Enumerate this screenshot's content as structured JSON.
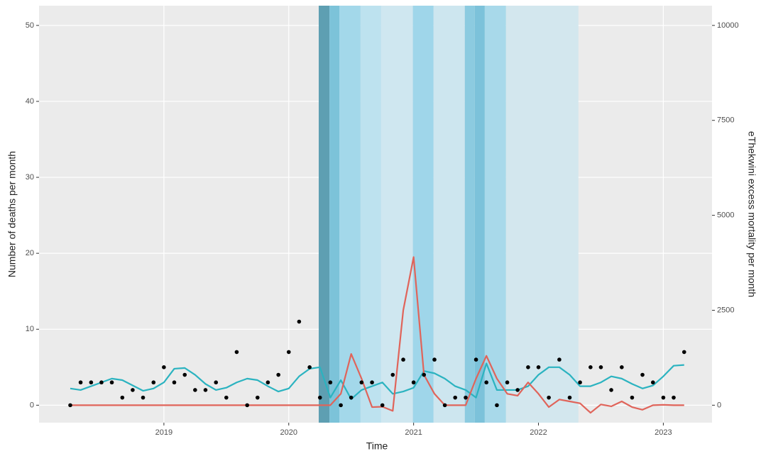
{
  "chart_data": {
    "type": "line",
    "xlabel": "Time",
    "ylabel": "Number of deaths per month",
    "y2label": "eThekwini excess mortality per month",
    "xlim": [
      2018.0,
      2023.39
    ],
    "xticks": [
      2019,
      2020,
      2021,
      2022,
      2023
    ],
    "ylim": [
      -2.3,
      52.6
    ],
    "yticks": [
      0,
      10,
      20,
      30,
      40,
      50
    ],
    "y2lim": [
      -460,
      10520
    ],
    "y2ticks": [
      0,
      2500,
      5000,
      7500,
      10000
    ],
    "grid": true,
    "bands": [
      {
        "x0": 2020.24,
        "x1": 2020.326,
        "color": "#5e9fb2"
      },
      {
        "x0": 2020.326,
        "x1": 2020.405,
        "color": "#7cc3d9"
      },
      {
        "x0": 2020.405,
        "x1": 2020.575,
        "color": "#a3d8ea"
      },
      {
        "x0": 2020.575,
        "x1": 2020.74,
        "color": "#bde2ef"
      },
      {
        "x0": 2020.74,
        "x1": 2020.994,
        "color": "#cfe7f0"
      },
      {
        "x0": 2020.994,
        "x1": 2021.16,
        "color": "#9fd6ea"
      },
      {
        "x0": 2021.16,
        "x1": 2021.41,
        "color": "#cde6ef"
      },
      {
        "x0": 2021.41,
        "x1": 2021.49,
        "color": "#8ccbe0"
      },
      {
        "x0": 2021.49,
        "x1": 2021.57,
        "color": "#7cc2da"
      },
      {
        "x0": 2021.57,
        "x1": 2021.74,
        "color": "#a8d9ea"
      },
      {
        "x0": 2021.74,
        "x1": 2022.32,
        "color": "#d3e7ee"
      }
    ],
    "x": [
      2018.25,
      2018.333,
      2018.417,
      2018.5,
      2018.583,
      2018.667,
      2018.75,
      2018.833,
      2018.917,
      2019.0,
      2019.083,
      2019.167,
      2019.25,
      2019.333,
      2019.417,
      2019.5,
      2019.583,
      2019.667,
      2019.75,
      2019.833,
      2019.917,
      2020.0,
      2020.083,
      2020.167,
      2020.25,
      2020.333,
      2020.417,
      2020.5,
      2020.583,
      2020.667,
      2020.75,
      2020.833,
      2020.917,
      2021.0,
      2021.083,
      2021.167,
      2021.25,
      2021.333,
      2021.417,
      2021.5,
      2021.583,
      2021.667,
      2021.75,
      2021.833,
      2021.917,
      2022.0,
      2022.083,
      2022.167,
      2022.25,
      2022.333,
      2022.417,
      2022.5,
      2022.583,
      2022.667,
      2022.75,
      2022.833,
      2022.917,
      2023.0,
      2023.083,
      2023.167
    ],
    "series": [
      {
        "type": "line",
        "color": "#2bb3c0",
        "values": [
          2.2,
          2.0,
          2.5,
          3.0,
          3.5,
          3.3,
          2.6,
          1.9,
          2.2,
          3.0,
          4.8,
          4.9,
          4.0,
          2.8,
          2.0,
          2.3,
          3.0,
          3.5,
          3.3,
          2.5,
          1.8,
          2.2,
          3.8,
          4.8,
          5.0,
          1.0,
          3.3,
          0.8,
          2.0,
          2.5,
          3.0,
          1.5,
          1.8,
          2.3,
          4.5,
          4.2,
          3.5,
          2.5,
          2.0,
          1.0,
          5.5,
          2.0,
          2.0,
          2.0,
          2.5,
          4.0,
          5.0,
          5.0,
          4.0,
          2.5,
          2.5,
          3.0,
          3.8,
          3.5,
          2.8,
          2.2,
          2.6,
          3.8,
          5.2,
          5.3
        ]
      },
      {
        "type": "line",
        "axis": "y2",
        "color": "#e0645a",
        "values": [
          0,
          0,
          0,
          0,
          0,
          0,
          0,
          0,
          0,
          0,
          0,
          0,
          0,
          0,
          0,
          0,
          0,
          0,
          0,
          0,
          0,
          0,
          0,
          0,
          0,
          0,
          300,
          1350,
          700,
          -50,
          -40,
          -150,
          2500,
          3900,
          800,
          300,
          0,
          0,
          0,
          700,
          1300,
          700,
          300,
          250,
          600,
          300,
          -50,
          150,
          100,
          50,
          -200,
          20,
          -30,
          100,
          -50,
          -120,
          0,
          10,
          0,
          0
        ]
      },
      {
        "type": "point",
        "color": "#000000",
        "values": [
          0,
          3,
          3,
          3,
          3,
          1,
          2,
          1,
          3,
          5,
          3,
          4,
          2,
          2,
          3,
          1,
          7,
          0,
          1,
          3,
          4,
          7,
          11,
          5,
          1,
          3,
          0,
          1,
          3,
          3,
          0,
          4,
          6,
          3,
          4,
          6,
          0,
          1,
          1,
          6,
          3,
          0,
          3,
          2,
          5,
          5,
          1,
          6,
          1,
          3,
          5,
          5,
          2,
          5,
          1,
          4,
          3,
          1,
          1,
          7
        ]
      }
    ]
  }
}
